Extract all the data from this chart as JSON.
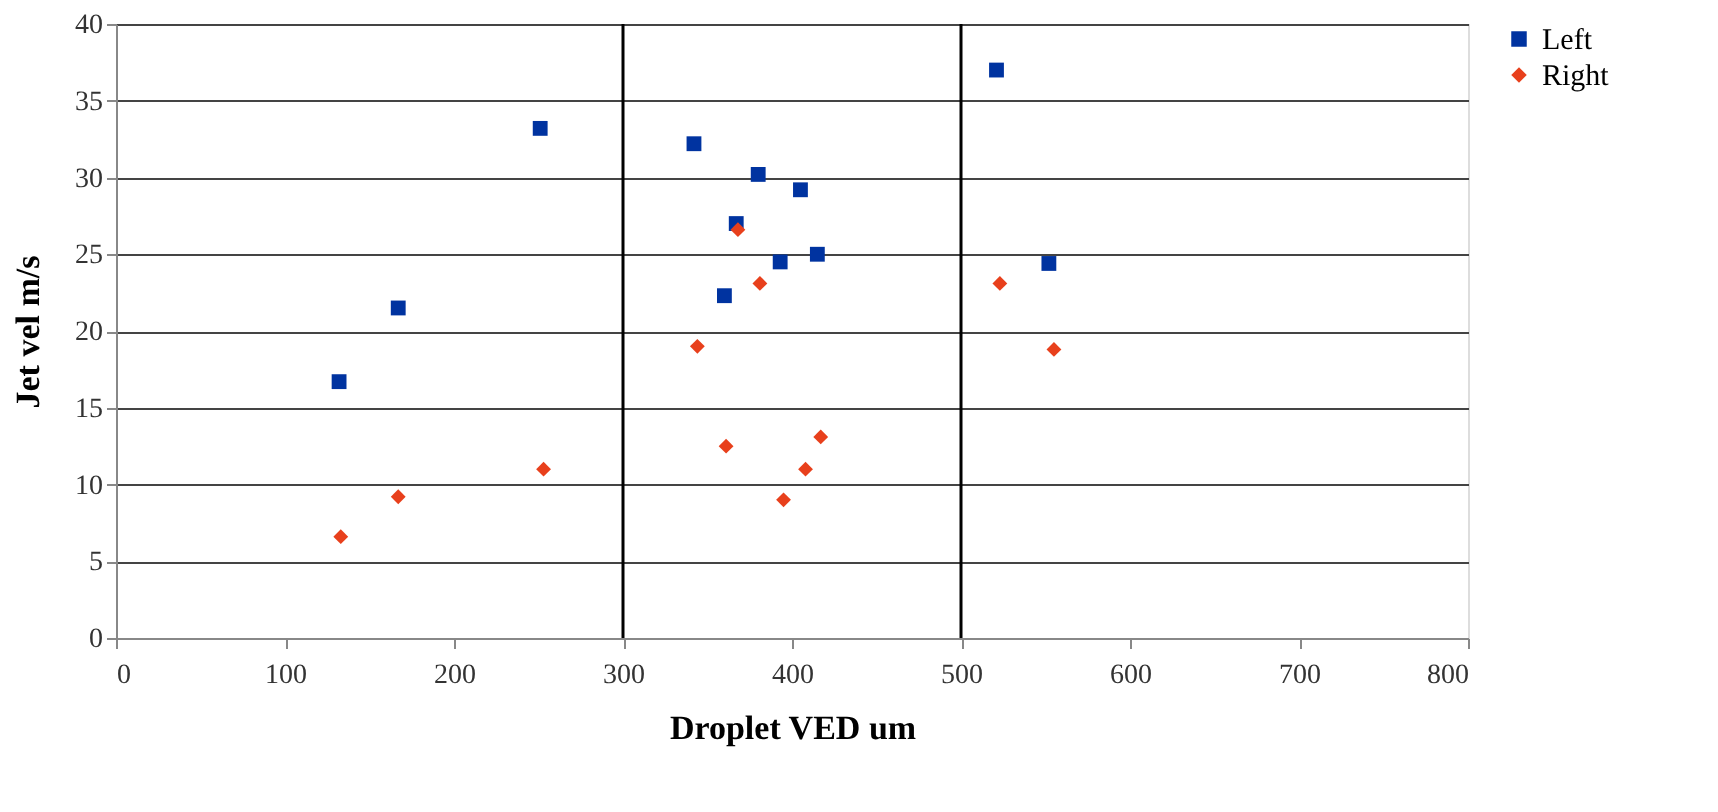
{
  "chart_data": {
    "type": "scatter",
    "xlabel": "Droplet VED um",
    "ylabel": "Jet vel m/s",
    "xlim": [
      0,
      800
    ],
    "xticks": [
      0,
      100,
      200,
      300,
      400,
      500,
      600,
      700,
      800
    ],
    "ylim": [
      0,
      40
    ],
    "yticks": [
      0,
      5,
      10,
      15,
      20,
      25,
      30,
      35,
      40
    ],
    "grid": "y",
    "legend": "right",
    "ref_lines": [
      {
        "axis": "x",
        "value": 300,
        "color": "#000000"
      },
      {
        "axis": "x",
        "value": 500,
        "color": "#000000"
      }
    ],
    "series": [
      {
        "name": "Left",
        "color": "#0033a0",
        "marker": "square",
        "x": [
          132,
          167,
          251,
          342,
          380,
          405,
          367,
          415,
          393,
          360,
          521,
          552
        ],
        "values": [
          16.7,
          21.5,
          33.2,
          32.2,
          30.2,
          29.2,
          27.0,
          25.0,
          24.5,
          22.3,
          37.0,
          24.4
        ]
      },
      {
        "name": "Right",
        "color": "#e8401c",
        "marker": "diamond",
        "x": [
          133,
          167,
          253,
          368,
          381,
          344,
          361,
          417,
          408,
          395,
          523,
          555
        ],
        "values": [
          6.6,
          9.2,
          11.0,
          26.6,
          23.1,
          19.0,
          12.5,
          13.1,
          11.0,
          9.0,
          23.1,
          18.8
        ]
      }
    ]
  }
}
